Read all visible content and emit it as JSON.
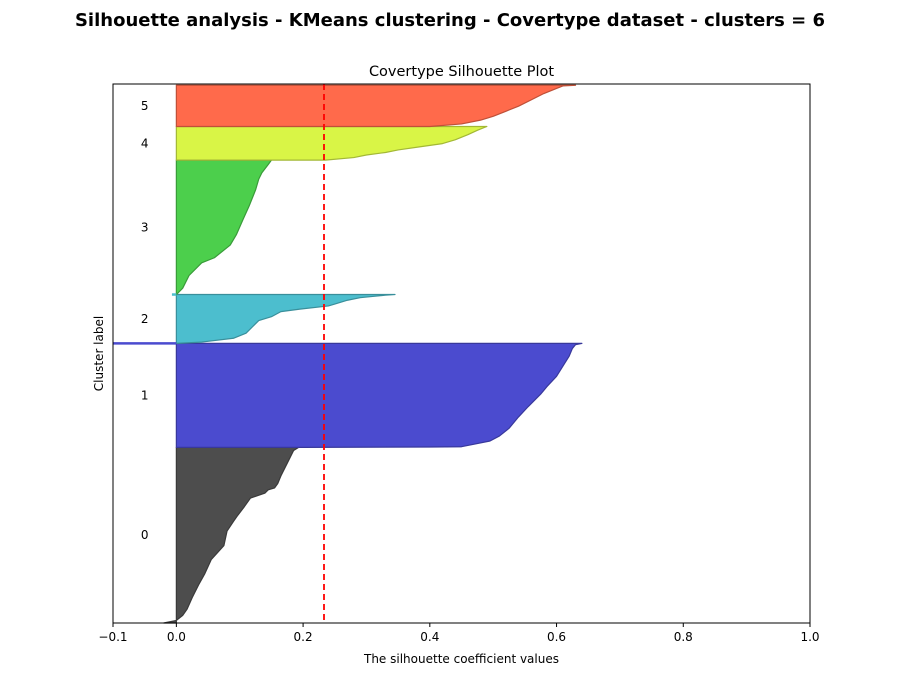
{
  "figure": {
    "suptitle": "Silhouette analysis - KMeans clustering - Covertype dataset - clusters = 6"
  },
  "chart_data": {
    "type": "area",
    "title": "Covertype Silhouette Plot",
    "xlabel": "The silhouette coefficient values",
    "ylabel": "Cluster label",
    "xlim": [
      -0.1,
      1.0
    ],
    "ylim": [
      0,
      850
    ],
    "xticks": [
      -0.1,
      0.0,
      0.2,
      0.4,
      0.6,
      0.8,
      1.0
    ],
    "xtick_labels": [
      "−0.1",
      "0.0",
      "0.2",
      "0.4",
      "0.6",
      "0.8",
      "1.0"
    ],
    "yticks": [],
    "grid": false,
    "average_silhouette": 0.233,
    "average_line_color": "#ff0000",
    "clusters": [
      {
        "label": "0",
        "color": "#4d4d4d",
        "y_lower": 0,
        "y_upper": 277,
        "profile": [
          [
            0,
            -0.02
          ],
          [
            4,
            0.0
          ],
          [
            12,
            0.01
          ],
          [
            22,
            0.017
          ],
          [
            40,
            0.025
          ],
          [
            60,
            0.035
          ],
          [
            78,
            0.045
          ],
          [
            100,
            0.055
          ],
          [
            122,
            0.075
          ],
          [
            145,
            0.08
          ],
          [
            160,
            0.09
          ],
          [
            170,
            0.097
          ],
          [
            183,
            0.107
          ],
          [
            197,
            0.117
          ],
          [
            205,
            0.14
          ],
          [
            210,
            0.145
          ],
          [
            213,
            0.155
          ],
          [
            220,
            0.16
          ],
          [
            232,
            0.165
          ],
          [
            252,
            0.175
          ],
          [
            262,
            0.18
          ],
          [
            272,
            0.185
          ],
          [
            277,
            0.193
          ]
        ]
      },
      {
        "label": "1",
        "color": "#4b4bcf",
        "y_lower": 277,
        "y_upper": 441,
        "profile": [
          [
            0,
            0.2
          ],
          [
            0.5,
            0.4
          ],
          [
            1,
            0.45
          ],
          [
            5,
            0.47
          ],
          [
            10,
            0.495
          ],
          [
            18,
            0.51
          ],
          [
            30,
            0.525
          ],
          [
            48,
            0.54
          ],
          [
            64,
            0.555
          ],
          [
            74,
            0.565
          ],
          [
            84,
            0.575
          ],
          [
            96,
            0.585
          ],
          [
            112,
            0.6
          ],
          [
            128,
            0.61
          ],
          [
            144,
            0.62
          ],
          [
            156,
            0.625
          ],
          [
            162,
            0.63
          ],
          [
            164,
            0.64
          ]
        ]
      },
      {
        "label": "2",
        "color": "#4cbece",
        "y_lower": 441,
        "y_upper": 518,
        "profile": [
          [
            0,
            0.0
          ],
          [
            2,
            0.04
          ],
          [
            8,
            0.09
          ],
          [
            16,
            0.11
          ],
          [
            26,
            0.12
          ],
          [
            36,
            0.13
          ],
          [
            42,
            0.15
          ],
          [
            50,
            0.165
          ],
          [
            54,
            0.195
          ],
          [
            59,
            0.24
          ],
          [
            62,
            0.25
          ],
          [
            68,
            0.27
          ],
          [
            72,
            0.29
          ],
          [
            74,
            0.31
          ],
          [
            76,
            0.33
          ],
          [
            77,
            0.345
          ]
        ]
      },
      {
        "label": "3",
        "color": "#4ccf4c",
        "y_lower": 518,
        "y_upper": 730,
        "profile": [
          [
            0,
            0.0
          ],
          [
            10,
            0.01
          ],
          [
            30,
            0.02
          ],
          [
            50,
            0.04
          ],
          [
            58,
            0.06
          ],
          [
            78,
            0.085
          ],
          [
            95,
            0.095
          ],
          [
            118,
            0.105
          ],
          [
            140,
            0.115
          ],
          [
            165,
            0.125
          ],
          [
            182,
            0.13
          ],
          [
            192,
            0.135
          ],
          [
            205,
            0.145
          ],
          [
            212,
            0.15
          ]
        ]
      },
      {
        "label": "4",
        "color": "#d9f546",
        "y_lower": 730,
        "y_upper": 783,
        "profile": [
          [
            0,
            0.235
          ],
          [
            4,
            0.28
          ],
          [
            8,
            0.3
          ],
          [
            12,
            0.33
          ],
          [
            16,
            0.35
          ],
          [
            21,
            0.385
          ],
          [
            26,
            0.42
          ],
          [
            32,
            0.44
          ],
          [
            40,
            0.46
          ],
          [
            47,
            0.475
          ],
          [
            53,
            0.49
          ]
        ]
      },
      {
        "label": "5",
        "color": "#ff6a4b",
        "y_lower": 783,
        "y_upper": 848,
        "profile": [
          [
            0,
            0.4
          ],
          [
            4,
            0.45
          ],
          [
            10,
            0.48
          ],
          [
            16,
            0.5
          ],
          [
            24,
            0.52
          ],
          [
            32,
            0.54
          ],
          [
            42,
            0.56
          ],
          [
            52,
            0.58
          ],
          [
            60,
            0.6
          ],
          [
            64,
            0.61
          ],
          [
            65,
            0.63
          ]
        ]
      }
    ],
    "outliers": [
      {
        "cluster": "1",
        "y": 441,
        "x": -0.1
      },
      {
        "cluster": "2",
        "y": 518,
        "x": -0.007
      }
    ]
  }
}
